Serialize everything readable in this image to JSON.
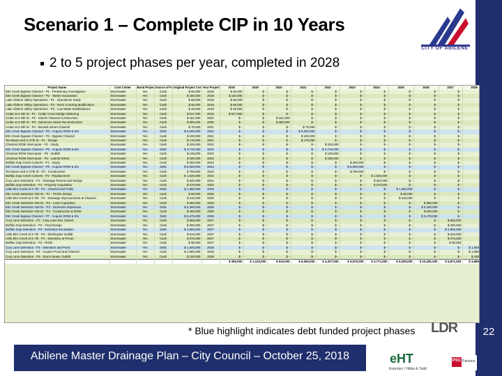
{
  "slide": {
    "title": "Scenario 1 – Complete CIP in 10 Years",
    "bullet": "2 to 5 project phases per year, completed in 2028",
    "note": "* Blue highlight indicates debt funded project phases",
    "footer": "Abilene Master Drainage Plan – City Council – October 25, 2018",
    "page_number": "22",
    "logo_caption": "CITY OF ABILENE",
    "partner_ldr": "LDR",
    "partner_eht": "eHT",
    "partner_eht_caption": "Enprotec / Hibbs & Todd",
    "partner_psc": "PSC",
    "partner_psc_caption": "Parsons"
  },
  "table": {
    "headers": [
      "Project Name",
      "Cost Center",
      "Bond Project? (Y/N)",
      "Source of Funding",
      "Original Project Cost",
      "Year Project Installed",
      "2018",
      "2019",
      "2020",
      "2021",
      "2022",
      "2023",
      "2024",
      "2025",
      "2026",
      "2027",
      "2028"
    ],
    "rows": [
      {
        "name": "Elm Creek Bypass Channel - P1 - Preliminary Investigation",
        "center": "Stormwater",
        "bond": "Yes",
        "fund": "Cash",
        "cost": "$ 60,000",
        "year": "2018",
        "debt": false
      },
      {
        "name": "Elm Creek Bypass Channel - P2 - Tanker Excavation",
        "center": "Stormwater",
        "bond": "Yes",
        "fund": "Cash",
        "cost": "$ 160,000",
        "year": "2018",
        "debt": false
      },
      {
        "name": "Lake Abilene Valley Operations - P1 - Operations Study",
        "center": "Stormwater",
        "bond": "Yes",
        "fund": "Cash",
        "cost": "$ 55,000",
        "year": "2018",
        "debt": false
      },
      {
        "name": "Lake Abilene Valley Operations - P2 - Rock Crossing Modification",
        "center": "Stormwater",
        "bond": "Yes",
        "fund": "Cash",
        "cost": "$ 55,000",
        "year": "2018",
        "debt": false
      },
      {
        "name": "Lake Abilene Valley Operations - P3 - Low Water Modifications",
        "center": "Stormwater",
        "bond": "Yes",
        "fund": "Cash",
        "cost": "$ 25,000",
        "year": "2018",
        "debt": false
      },
      {
        "name": "Cedar at S 8th St - P1 - Cedar Creek Bridge Widening",
        "center": "Stormwater",
        "bond": "Yes",
        "fund": "Cash",
        "cost": "$ 517,000",
        "year": "2018",
        "debt": false
      },
      {
        "name": "Cedar at S 8th St - P2 - Interim Channel Construction",
        "center": "Stormwater",
        "bond": "Yes",
        "fund": "Cash",
        "cost": "$ 161,000",
        "year": "2020",
        "debt": false
      },
      {
        "name": "Cedar at S 8th St - P3 - Sammons Street Reconstruction",
        "center": "Stormwater",
        "bond": "Yes",
        "fund": "Cash",
        "cost": "$ 385,000",
        "year": "2020",
        "debt": false
      },
      {
        "name": "Cedar at S 8th St - P4 - Bounds Street Channel",
        "center": "Stormwater",
        "bond": "Yes",
        "fund": "Cash",
        "cost": "$ 75,000",
        "year": "2021",
        "debt": false
      },
      {
        "name": "Elm Creek Bypass Channel - P3 - Acquire ROW & 5%",
        "center": "Stormwater",
        "bond": "Yes",
        "fund": "Debt",
        "cost": "$ 6,000,000",
        "year": "2021",
        "debt": true
      },
      {
        "name": "Elm Creek Bypass Channel - P4 - Bypass Channel",
        "center": "Stormwater",
        "bond": "Yes",
        "fund": "Cash",
        "cost": "$ 100,000",
        "year": "2021",
        "debt": false
      },
      {
        "name": "Ten Baum and S 27th St - P1 - Design",
        "center": "Stormwater",
        "bond": "Yes",
        "fund": "Cash",
        "cost": "$ 175,000",
        "year": "2021",
        "debt": false
      },
      {
        "name": "Chestnut ROW Interceptor - P1 - Study",
        "center": "Stormwater",
        "bond": "Yes",
        "fund": "Cash",
        "cost": "$ 225,000",
        "year": "2022",
        "debt": false
      },
      {
        "name": "Elm Creek Bypass Channel - P5 - Acquire ROW & 5%",
        "center": "Stormwater",
        "bond": "Yes",
        "fund": "Debt",
        "cost": "$ 3,715,000",
        "year": "2022",
        "debt": true
      },
      {
        "name": "Chestnut ROW Interceptor - P2 - Outfall",
        "center": "Stormwater",
        "bond": "Yes",
        "fund": "Cash",
        "cost": "$ 135,000",
        "year": "2022",
        "debt": false
      },
      {
        "name": "Chestnut ROW Interceptor - P3 - Lateral Street",
        "center": "Stormwater",
        "bond": "Yes",
        "fund": "Cash",
        "cost": "$ 195,000",
        "year": "2022",
        "debt": false
      },
      {
        "name": "Buffalo Gap Creek Culverts - P1 - Study",
        "center": "Stormwater",
        "bond": "Yes",
        "fund": "Cash",
        "cost": "$ 260,000",
        "year": "2023",
        "debt": false
      },
      {
        "name": "Elm Creek Bypass Channel - P6 - Acquire ROW & 5%",
        "center": "Stormwater",
        "bond": "Yes",
        "fund": "Debt",
        "cost": "$ 5,000,000",
        "year": "2023",
        "debt": true
      },
      {
        "name": "Ten Baum and S 27th St - P2 - Construction",
        "center": "Stormwater",
        "bond": "Yes",
        "fund": "Cash",
        "cost": "$ 790,000",
        "year": "2023",
        "debt": false
      },
      {
        "name": "Buffalo Gap Creek Culverts - P2 - Replacement",
        "center": "Stormwater",
        "bond": "Yes",
        "fund": "Cash",
        "cost": "$ 1,525,000",
        "year": "2024",
        "debt": false
      },
      {
        "name": "Cury Lane Detention - P1 - Drainage Review and Design",
        "center": "Stormwater",
        "bond": "Yes",
        "fund": "Cash",
        "cost": "$ 340,000",
        "year": "2024",
        "debt": false
      },
      {
        "name": "Buffalo Gap Detention - P1 - Property Acquisition",
        "center": "Stormwater",
        "bond": "Yes",
        "fund": "Cash",
        "cost": "$ 270,000",
        "year": "2024",
        "debt": false
      },
      {
        "name": "Little Elm Creek at S 7th - P1 - Channel and Trails",
        "center": "Stormwater",
        "bond": "Yes",
        "fund": "Debt",
        "cost": "$ 1,350,000",
        "year": "2025",
        "debt": true
      },
      {
        "name": "Elm Creek Detention SW Dr - P1 - Prelim Design",
        "center": "Stormwater",
        "bond": "Yes",
        "fund": "Cash",
        "cost": "$ 55,000",
        "year": "2025",
        "debt": false
      },
      {
        "name": "Little Elm Creek at S 7th - P2 - Drainage Improvements at Channel",
        "center": "Stormwater",
        "bond": "Yes",
        "fund": "Cash",
        "cost": "$ 410,000",
        "year": "2025",
        "debt": false
      },
      {
        "name": "Elm Creek Detention SW Dr - P2 - Land Acquisition",
        "center": "Stormwater",
        "bond": "Yes",
        "fund": "Cash",
        "cost": "$ 350,000",
        "year": "2026",
        "debt": false
      },
      {
        "name": "Elm Creek Detention SW Dr - P3 - Detention Expansion",
        "center": "Stormwater",
        "bond": "Yes",
        "fund": "Debt",
        "cost": "$ 5,400,000",
        "year": "2026",
        "debt": true
      },
      {
        "name": "Elm Creek Detention SW Dr - P4 - Construction & ROW",
        "center": "Stormwater",
        "bond": "Yes",
        "fund": "Cash",
        "cost": "$ 400,000",
        "year": "2026",
        "debt": false
      },
      {
        "name": "Elm Creek Bypass Channel - P7 - Acquire ROW & 5%",
        "center": "Stormwater",
        "bond": "Yes",
        "fund": "Debt",
        "cost": "$ 5,475,000",
        "year": "2026",
        "debt": true
      },
      {
        "name": "Cury Lane Detention - P2 - Cury Lane Box Culvert",
        "center": "Stormwater",
        "bond": "Yes",
        "fund": "Cash",
        "cost": "$ 655,000",
        "year": "2027",
        "debt": false
      },
      {
        "name": "Buffalo Gap Detention - P2 - Final Design",
        "center": "Stormwater",
        "bond": "Yes",
        "fund": "Cash",
        "cost": "$ 200,000",
        "year": "2027",
        "debt": false
      },
      {
        "name": "Buffalo Gap Detention - P3 - Detention Excavation",
        "center": "Stormwater",
        "bond": "Yes",
        "fund": "Debt",
        "cost": "$ 2,800,000",
        "year": "2027",
        "debt": true
      },
      {
        "name": "Little Elm Creek at S 7th - P3 - Elm/Sayles Outfall",
        "center": "Stormwater",
        "bond": "Yes",
        "fund": "Cash",
        "cost": "$ 515,000",
        "year": "2027",
        "debt": false
      },
      {
        "name": "Little Elm Creek at S 7th - P4 - Detention at Pecan",
        "center": "Stormwater",
        "bond": "Yes",
        "fund": "Cash",
        "cost": "$ 375,000",
        "year": "2027",
        "debt": false
      },
      {
        "name": "Buffalo Gap Detention - P4 - ROW",
        "center": "Stormwater",
        "bond": "Yes",
        "fund": "Cash",
        "cost": "$ 90,000",
        "year": "2027",
        "debt": false
      },
      {
        "name": "Cury Lane Detention - P3 - Detention and Pond",
        "center": "Stormwater",
        "bond": "Yes",
        "fund": "Debt",
        "cost": "$ 1,825,000",
        "year": "2028",
        "debt": true
      },
      {
        "name": "Cury Lane Detention - P4 - Acquire Pond and Channel",
        "center": "Stormwater",
        "bond": "Yes",
        "fund": "Cash",
        "cost": "$ 1,060,000",
        "year": "2028",
        "debt": false
      },
      {
        "name": "Cury Lane Detention - P5 - Storm Sewer Outfall",
        "center": "Stormwater",
        "bond": "Yes",
        "fund": "Cash",
        "cost": "$ 100,000",
        "year": "2028",
        "debt": false
      }
    ],
    "totals": [
      "$ 306,000",
      "$ 1,120,000",
      "$ 516,000",
      "$ 6,350,000",
      "$ 4,327,000",
      "$ 5,975,000",
      "$ 3,771,000",
      "$ 9,205,000",
      "$ 10,281,000",
      "$ 5,871,000",
      "$ 3,985,000"
    ]
  }
}
